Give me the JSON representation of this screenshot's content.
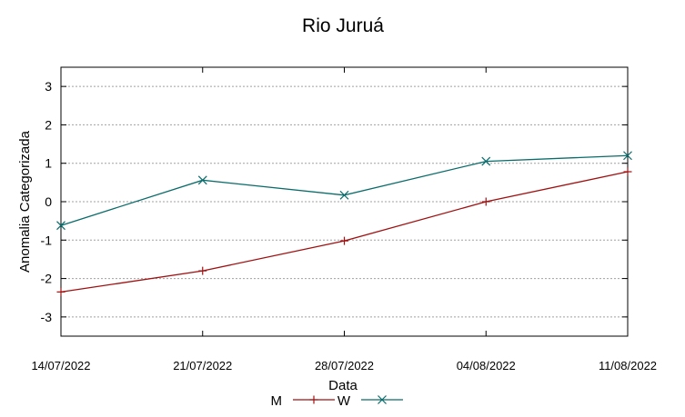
{
  "chart_data": {
    "type": "line",
    "title": "Rio Juruá",
    "xlabel": "Data",
    "ylabel": "Anomalia Categorizada",
    "categories": [
      "14/07/2022",
      "21/07/2022",
      "28/07/2022",
      "04/08/2022",
      "11/08/2022"
    ],
    "yticks": [
      3,
      2,
      1,
      0,
      -1,
      -2,
      -3
    ],
    "ylim": [
      -3.5,
      3.5
    ],
    "grid": true,
    "legend_position": "bottom",
    "series": [
      {
        "name": "M",
        "marker": "+",
        "color": "#a01010",
        "values": [
          -2.35,
          -1.8,
          -1.02,
          0.0,
          0.78
        ]
      },
      {
        "name": "W",
        "marker": "x",
        "color": "#0a6b6b",
        "values": [
          -0.62,
          0.56,
          0.17,
          1.05,
          1.2
        ]
      }
    ]
  }
}
